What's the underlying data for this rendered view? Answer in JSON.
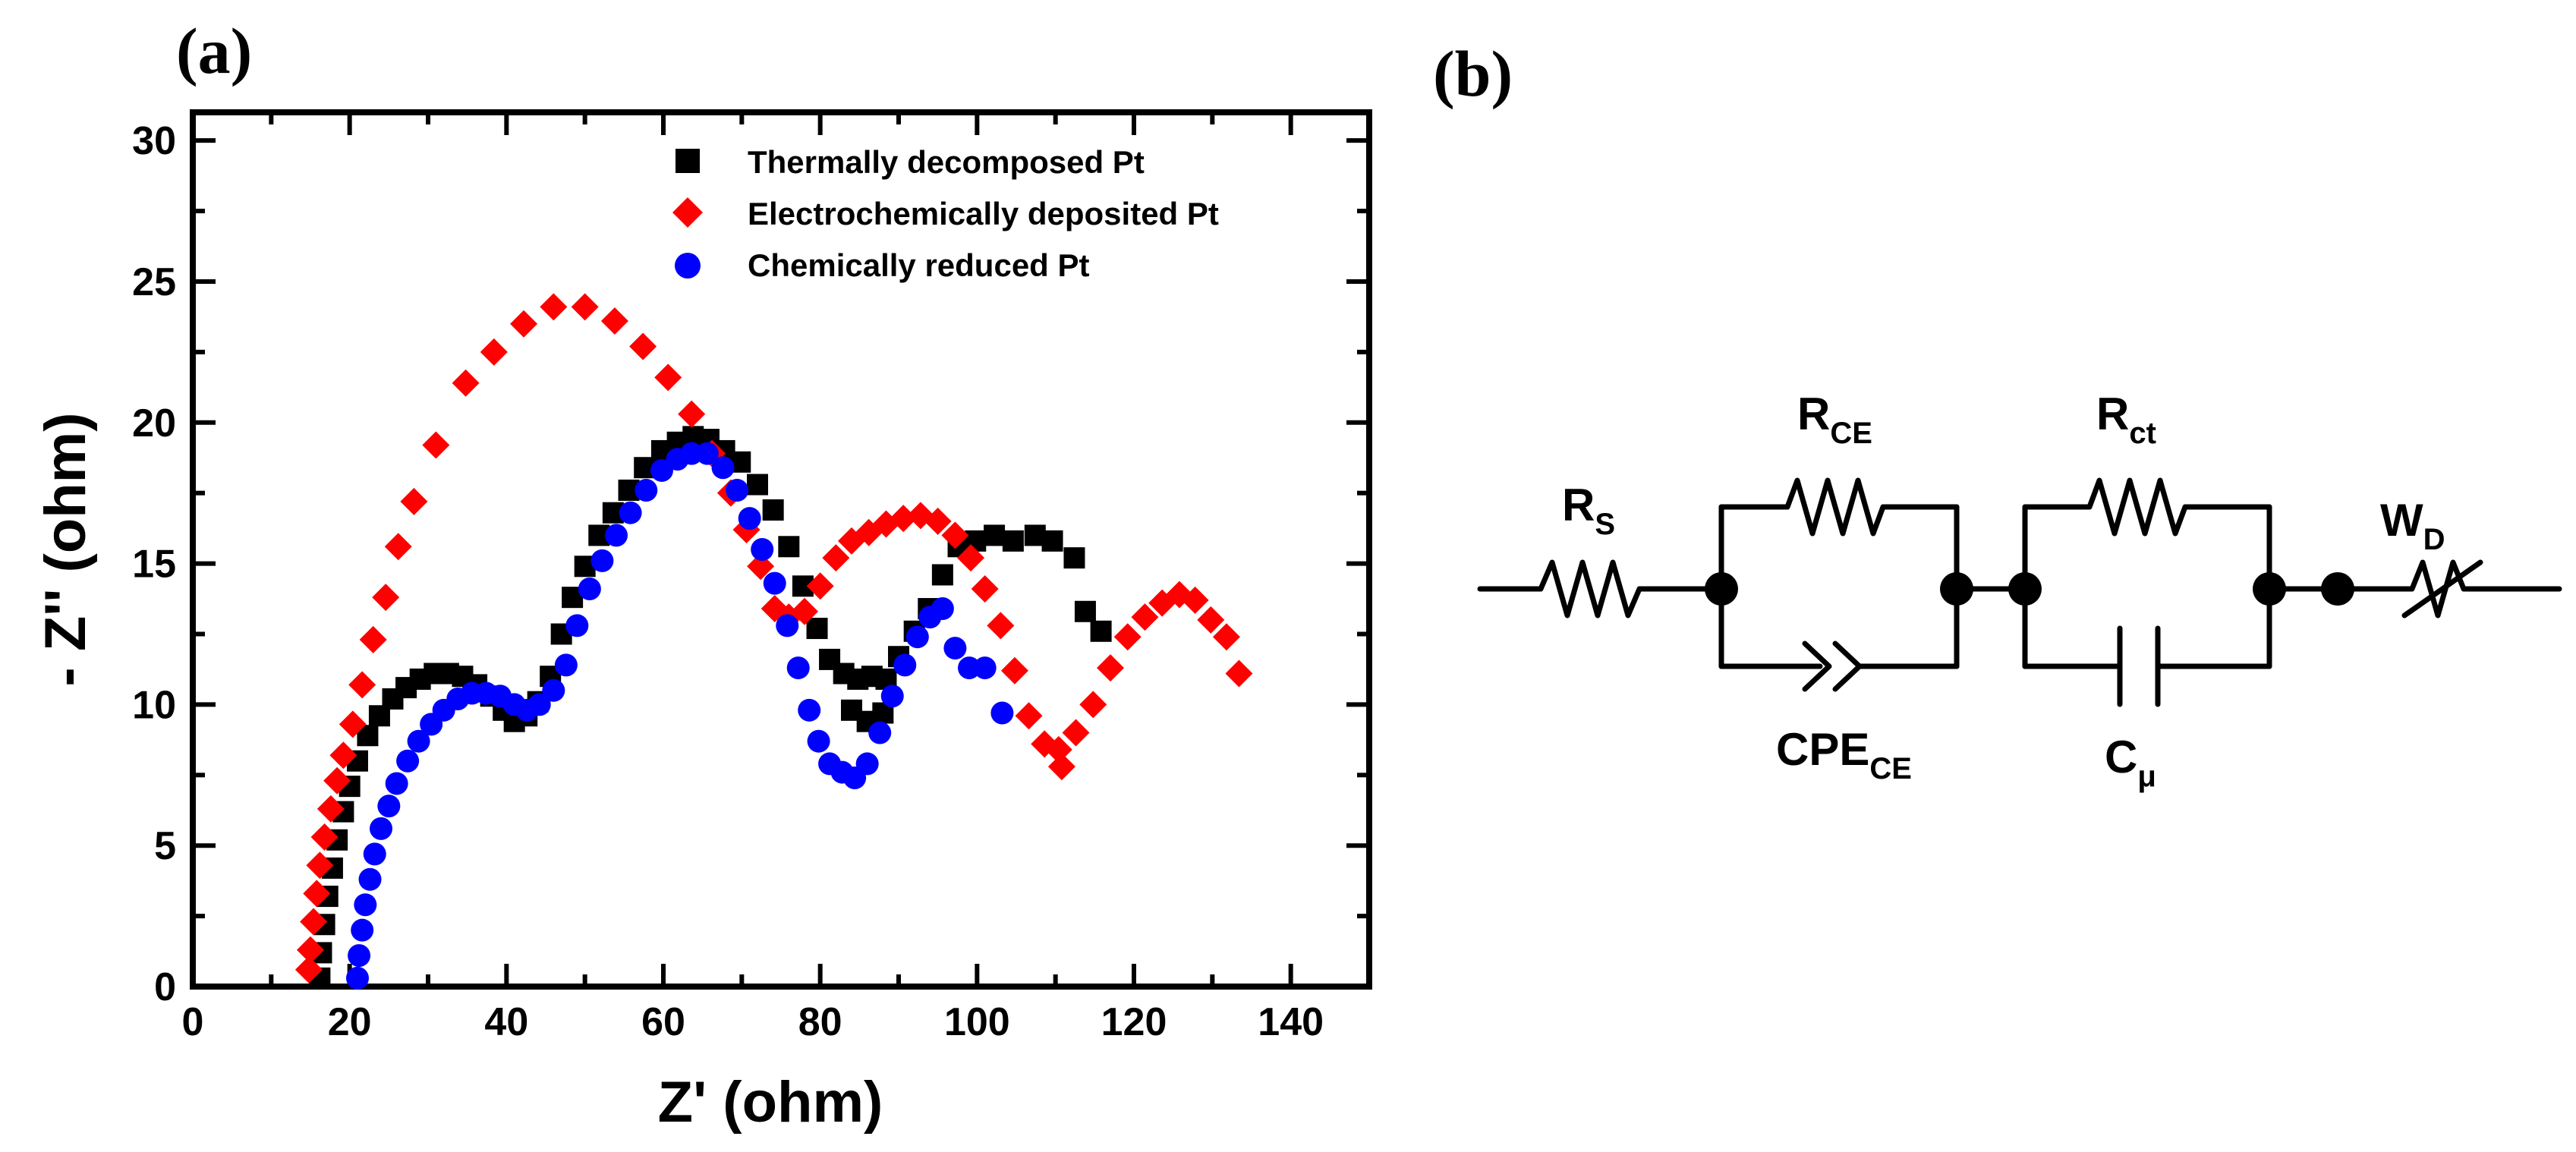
{
  "panels": {
    "a_label": "(a)",
    "b_label": "(b)"
  },
  "chart_data": {
    "type": "scatter",
    "title": "",
    "xlabel": "Z' (ohm)",
    "ylabel": "- Z'' (ohm)",
    "xlim": [
      0,
      150
    ],
    "ylim": [
      0,
      31
    ],
    "x_ticks": [
      0,
      20,
      40,
      60,
      80,
      100,
      120,
      140
    ],
    "y_ticks": [
      0,
      5,
      10,
      15,
      20,
      25,
      30
    ],
    "grid": false,
    "legend_position": "top-right",
    "series": [
      {
        "name": "Thermally decomposed Pt",
        "color": "#000000",
        "marker": "square",
        "points": [
          [
            16.2,
            0.3
          ],
          [
            16.4,
            1.2
          ],
          [
            16.8,
            2.2
          ],
          [
            17.2,
            3.2
          ],
          [
            17.8,
            4.2
          ],
          [
            18.4,
            5.2
          ],
          [
            19.2,
            6.2
          ],
          [
            20.0,
            7.1
          ],
          [
            21.0,
            8.0
          ],
          [
            22.3,
            8.9
          ],
          [
            23.8,
            9.6
          ],
          [
            25.5,
            10.2
          ],
          [
            27.2,
            10.6
          ],
          [
            29.0,
            10.9
          ],
          [
            30.8,
            11.1
          ],
          [
            32.6,
            11.1
          ],
          [
            34.4,
            11.0
          ],
          [
            36.2,
            10.7
          ],
          [
            38.0,
            10.3
          ],
          [
            39.6,
            9.8
          ],
          [
            41.0,
            9.4
          ],
          [
            42.6,
            9.6
          ],
          [
            44.0,
            10.1
          ],
          [
            45.6,
            11.0
          ],
          [
            47.0,
            12.5
          ],
          [
            48.4,
            13.8
          ],
          [
            50.0,
            14.9
          ],
          [
            51.8,
            16.0
          ],
          [
            53.6,
            16.8
          ],
          [
            55.6,
            17.6
          ],
          [
            57.6,
            18.4
          ],
          [
            59.8,
            19.0
          ],
          [
            61.8,
            19.3
          ],
          [
            63.8,
            19.5
          ],
          [
            65.8,
            19.4
          ],
          [
            67.8,
            19.0
          ],
          [
            69.8,
            18.6
          ],
          [
            72.0,
            17.8
          ],
          [
            74.0,
            16.9
          ],
          [
            76.0,
            15.6
          ],
          [
            77.8,
            14.2
          ],
          [
            79.6,
            12.7
          ],
          [
            81.2,
            11.6
          ],
          [
            83.0,
            11.1
          ],
          [
            84.8,
            10.9
          ],
          [
            86.6,
            11.0
          ],
          [
            88.4,
            10.9
          ],
          [
            90.0,
            11.7
          ],
          [
            92.0,
            12.6
          ],
          [
            93.8,
            13.4
          ],
          [
            95.6,
            14.6
          ],
          [
            97.6,
            15.6
          ],
          [
            99.8,
            15.8
          ],
          [
            102.2,
            16.0
          ],
          [
            104.6,
            15.8
          ],
          [
            107.4,
            16.0
          ],
          [
            109.6,
            15.8
          ],
          [
            112.4,
            15.2
          ],
          [
            113.8,
            13.3
          ],
          [
            115.8,
            12.6
          ],
          [
            84.0,
            9.8
          ],
          [
            86.0,
            9.4
          ],
          [
            88.0,
            9.7
          ]
        ]
      },
      {
        "name": "Electrochemically deposited Pt",
        "color": "#ff0000",
        "marker": "diamond",
        "points": [
          [
            14.8,
            0.6
          ],
          [
            15.0,
            1.3
          ],
          [
            15.4,
            2.3
          ],
          [
            15.8,
            3.3
          ],
          [
            16.2,
            4.3
          ],
          [
            16.8,
            5.3
          ],
          [
            17.6,
            6.3
          ],
          [
            18.4,
            7.3
          ],
          [
            19.2,
            8.2
          ],
          [
            20.4,
            9.3
          ],
          [
            21.6,
            10.7
          ],
          [
            23.0,
            12.3
          ],
          [
            24.6,
            13.8
          ],
          [
            26.2,
            15.6
          ],
          [
            28.2,
            17.2
          ],
          [
            31.0,
            19.2
          ],
          [
            34.8,
            21.4
          ],
          [
            38.4,
            22.5
          ],
          [
            42.2,
            23.5
          ],
          [
            46.0,
            24.1
          ],
          [
            50.0,
            24.1
          ],
          [
            53.8,
            23.6
          ],
          [
            57.4,
            22.7
          ],
          [
            60.6,
            21.6
          ],
          [
            63.6,
            20.3
          ],
          [
            66.2,
            18.9
          ],
          [
            68.6,
            17.5
          ],
          [
            70.6,
            16.2
          ],
          [
            72.4,
            14.9
          ],
          [
            74.2,
            13.4
          ],
          [
            76.0,
            13.1
          ],
          [
            78.0,
            13.3
          ],
          [
            80.0,
            14.2
          ],
          [
            82.0,
            15.2
          ],
          [
            84.0,
            15.8
          ],
          [
            86.2,
            16.1
          ],
          [
            88.4,
            16.4
          ],
          [
            90.6,
            16.6
          ],
          [
            92.8,
            16.7
          ],
          [
            95.0,
            16.5
          ],
          [
            97.2,
            16.0
          ],
          [
            99.2,
            15.2
          ],
          [
            101.0,
            14.1
          ],
          [
            103.0,
            12.8
          ],
          [
            104.8,
            11.2
          ],
          [
            106.6,
            9.6
          ],
          [
            108.6,
            8.6
          ],
          [
            110.4,
            8.4
          ],
          [
            112.6,
            9.0
          ],
          [
            114.8,
            10.0
          ],
          [
            117.0,
            11.3
          ],
          [
            119.2,
            12.4
          ],
          [
            121.4,
            13.1
          ],
          [
            123.6,
            13.6
          ],
          [
            125.8,
            13.9
          ],
          [
            127.8,
            13.7
          ],
          [
            129.8,
            13.0
          ],
          [
            131.8,
            12.4
          ],
          [
            133.4,
            11.1
          ],
          [
            110.8,
            7.8
          ]
        ]
      },
      {
        "name": "Chemically reduced Pt",
        "color": "#0000ff",
        "marker": "circle",
        "points": [
          [
            21.0,
            0.3
          ],
          [
            21.2,
            1.1
          ],
          [
            21.6,
            2.0
          ],
          [
            22.0,
            2.9
          ],
          [
            22.6,
            3.8
          ],
          [
            23.2,
            4.7
          ],
          [
            24.0,
            5.6
          ],
          [
            25.0,
            6.4
          ],
          [
            26.0,
            7.2
          ],
          [
            27.4,
            8.0
          ],
          [
            28.8,
            8.7
          ],
          [
            30.4,
            9.3
          ],
          [
            32.0,
            9.8
          ],
          [
            33.8,
            10.2
          ],
          [
            35.6,
            10.4
          ],
          [
            37.4,
            10.4
          ],
          [
            39.2,
            10.3
          ],
          [
            41.0,
            10.0
          ],
          [
            42.6,
            9.8
          ],
          [
            44.2,
            10.0
          ],
          [
            46.0,
            10.5
          ],
          [
            47.6,
            11.4
          ],
          [
            49.0,
            12.8
          ],
          [
            50.6,
            14.1
          ],
          [
            52.2,
            15.1
          ],
          [
            54.0,
            16.0
          ],
          [
            55.8,
            16.8
          ],
          [
            57.8,
            17.6
          ],
          [
            59.8,
            18.3
          ],
          [
            61.8,
            18.7
          ],
          [
            63.6,
            18.9
          ],
          [
            65.6,
            18.9
          ],
          [
            67.6,
            18.4
          ],
          [
            69.4,
            17.6
          ],
          [
            71.0,
            16.6
          ],
          [
            72.6,
            15.5
          ],
          [
            74.2,
            14.3
          ],
          [
            75.8,
            12.8
          ],
          [
            77.2,
            11.3
          ],
          [
            78.6,
            9.8
          ],
          [
            79.8,
            8.7
          ],
          [
            81.2,
            7.9
          ],
          [
            82.8,
            7.6
          ],
          [
            84.4,
            7.4
          ],
          [
            86.0,
            7.9
          ],
          [
            87.6,
            9.0
          ],
          [
            89.2,
            10.3
          ],
          [
            90.8,
            11.4
          ],
          [
            92.4,
            12.4
          ],
          [
            94.0,
            13.1
          ],
          [
            95.6,
            13.4
          ],
          [
            97.2,
            12.0
          ],
          [
            99.0,
            11.3
          ],
          [
            101.0,
            11.3
          ],
          [
            103.2,
            9.7
          ]
        ]
      }
    ]
  },
  "circuit": {
    "rs": {
      "main": "R",
      "sub": "S"
    },
    "rce": {
      "main": "R",
      "sub": "CE"
    },
    "cpe": {
      "main": "CPE",
      "sub": "CE"
    },
    "rct": {
      "main": "R",
      "sub": "ct"
    },
    "cmu": {
      "main": "C",
      "sub": "μ"
    },
    "wd": {
      "main": "W",
      "sub": "D"
    }
  }
}
